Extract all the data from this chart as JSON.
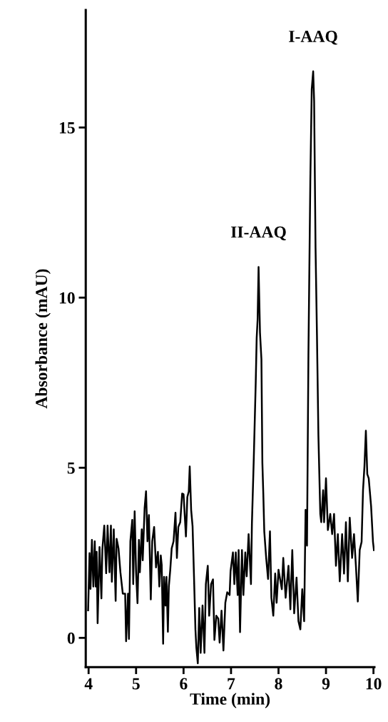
{
  "chart_data": {
    "type": "line",
    "xlabel": "Time (min)",
    "ylabel": "Absorbance (mAU)",
    "xlim": [
      3.94,
      10.02
    ],
    "ylim": [
      -0.86,
      18.45
    ],
    "xticks": [
      4,
      5,
      6,
      7,
      8,
      9,
      10
    ],
    "yticks": [
      0,
      5,
      10,
      15
    ],
    "grid": false,
    "legend": false,
    "marker": "none",
    "line_style": "solid",
    "annotations": [
      {
        "text": "II-AAQ",
        "x": 7.58,
        "y": 10.9
      },
      {
        "text": "I-AAQ",
        "x": 8.73,
        "y": 16.65
      }
    ],
    "series": [
      {
        "color": "#000000",
        "x": [
          3.99,
          4.02,
          4.04,
          4.07,
          4.1,
          4.13,
          4.15,
          4.17,
          4.19,
          4.23,
          4.27,
          4.29,
          4.33,
          4.37,
          4.4,
          4.44,
          4.47,
          4.49,
          4.53,
          4.57,
          4.59,
          4.63,
          4.67,
          4.72,
          4.77,
          4.79,
          4.83,
          4.85,
          4.88,
          4.92,
          4.94,
          4.97,
          5.0,
          5.03,
          5.06,
          5.08,
          5.12,
          5.14,
          5.18,
          5.21,
          5.24,
          5.27,
          5.31,
          5.34,
          5.38,
          5.42,
          5.46,
          5.49,
          5.52,
          5.54,
          5.57,
          5.59,
          5.62,
          5.64,
          5.67,
          5.69,
          5.72,
          5.75,
          5.79,
          5.83,
          5.86,
          5.89,
          5.93,
          5.97,
          6.0,
          6.05,
          6.08,
          6.11,
          6.13,
          6.16,
          6.19,
          6.22,
          6.25,
          6.27,
          6.3,
          6.33,
          6.36,
          6.4,
          6.44,
          6.47,
          6.51,
          6.54,
          6.58,
          6.62,
          6.65,
          6.69,
          6.73,
          6.76,
          6.8,
          6.84,
          6.88,
          6.92,
          6.97,
          6.99,
          7.04,
          7.07,
          7.1,
          7.14,
          7.16,
          7.19,
          7.23,
          7.26,
          7.3,
          7.33,
          7.37,
          7.42,
          7.44,
          7.48,
          7.52,
          7.54,
          7.56,
          7.58,
          7.61,
          7.64,
          7.66,
          7.68,
          7.7,
          7.74,
          7.78,
          7.82,
          7.85,
          7.89,
          7.93,
          7.96,
          8.0,
          8.07,
          8.1,
          8.15,
          8.21,
          8.25,
          8.29,
          8.33,
          8.38,
          8.42,
          8.46,
          8.5,
          8.54,
          8.57,
          8.6,
          8.63,
          8.67,
          8.7,
          8.73,
          8.75,
          8.78,
          8.81,
          8.84,
          8.88,
          8.9,
          8.94,
          8.96,
          9.0,
          9.04,
          9.09,
          9.13,
          9.17,
          9.21,
          9.25,
          9.29,
          9.34,
          9.38,
          9.42,
          9.46,
          9.5,
          9.55,
          9.59,
          9.63,
          9.67,
          9.71,
          9.75,
          9.78,
          9.81,
          9.84,
          9.87,
          9.9,
          9.95,
          9.99,
          10.01
        ],
        "values": [
          0.81,
          2.49,
          1.44,
          2.88,
          1.51,
          2.84,
          1.51,
          2.53,
          0.43,
          2.67,
          1.16,
          2.6,
          3.3,
          1.9,
          3.3,
          1.93,
          3.3,
          1.65,
          3.19,
          1.09,
          2.91,
          2.63,
          1.93,
          1.3,
          1.3,
          -0.1,
          1.3,
          -0.03,
          2.84,
          3.47,
          1.58,
          3.72,
          1.93,
          1.02,
          2.88,
          1.93,
          3.19,
          2.28,
          3.82,
          4.31,
          2.84,
          3.61,
          1.13,
          2.84,
          3.26,
          2.07,
          2.53,
          1.51,
          2.42,
          2.14,
          -0.17,
          1.79,
          0.95,
          1.79,
          0.18,
          1.51,
          2.0,
          2.63,
          2.84,
          3.68,
          2.35,
          3.26,
          3.4,
          4.24,
          4.22,
          2.98,
          4.14,
          4.3,
          5.04,
          3.76,
          3.28,
          1.81,
          0.25,
          -0.29,
          -0.75,
          0.88,
          -0.44,
          0.95,
          -0.44,
          1.58,
          2.12,
          0.65,
          1.58,
          1.72,
          -0.06,
          0.65,
          0.57,
          -0.14,
          0.8,
          -0.37,
          1.03,
          1.34,
          1.26,
          1.96,
          2.51,
          1.58,
          2.51,
          1.26,
          2.58,
          0.17,
          2.58,
          1.26,
          2.51,
          1.81,
          3.05,
          1.58,
          3.36,
          5.31,
          7.49,
          8.81,
          9.36,
          10.9,
          8.97,
          8.19,
          5.15,
          4.22,
          3.13,
          2.35,
          1.73,
          3.13,
          1.18,
          0.65,
          1.89,
          1.03,
          2.0,
          1.43,
          2.35,
          1.18,
          2.12,
          0.84,
          2.58,
          0.72,
          1.77,
          0.49,
          0.25,
          1.43,
          0.49,
          3.76,
          2.71,
          8.3,
          13.44,
          16.13,
          16.65,
          15.78,
          11.46,
          8.89,
          5.97,
          3.64,
          3.4,
          4.34,
          3.4,
          4.69,
          3.17,
          3.64,
          3.05,
          3.64,
          2.12,
          3.05,
          1.66,
          3.05,
          1.89,
          3.4,
          1.66,
          3.53,
          2.35,
          3.05,
          2.12,
          1.07,
          2.58,
          2.82,
          4.34,
          5.04,
          6.09,
          4.81,
          4.69,
          3.87,
          2.82,
          2.58
        ]
      }
    ]
  }
}
